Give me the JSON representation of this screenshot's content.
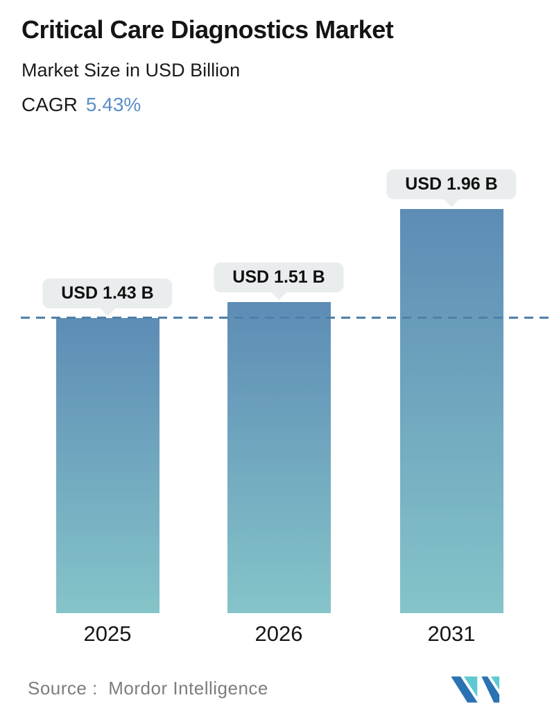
{
  "header": {
    "title": "Critical Care Diagnostics Market",
    "subtitle": "Market Size in USD Billion",
    "cagr_label": "CAGR",
    "cagr_value": "5.43%"
  },
  "chart_data": {
    "type": "bar",
    "title": "Critical Care Diagnostics Market",
    "ylabel": "Market Size in USD Billion",
    "categories": [
      "2025",
      "2026",
      "2031"
    ],
    "values": [
      1.43,
      1.51,
      1.96
    ],
    "value_labels": [
      "USD 1.43 B",
      "USD 1.51 B",
      "USD 1.96 B"
    ],
    "ylim": [
      0,
      2.3
    ],
    "grid": false,
    "legend": false,
    "reference_line": {
      "value": 1.43,
      "style": "dashed"
    }
  },
  "footer": {
    "source_label": "Source :  Mordor Intelligence",
    "logo_name": "mordor-intelligence-logo"
  },
  "colors": {
    "cagr_accent": "#5b8ec5",
    "bar_gradient_top": "#5d8cb5",
    "bar_gradient_bottom": "#85c4c9",
    "dashed_line": "#4d80aa",
    "callout_bg": "#e9edee",
    "logo_teal": "#5ec9d0",
    "logo_blue": "#2b72b3",
    "source_text": "#7d7d7d"
  }
}
